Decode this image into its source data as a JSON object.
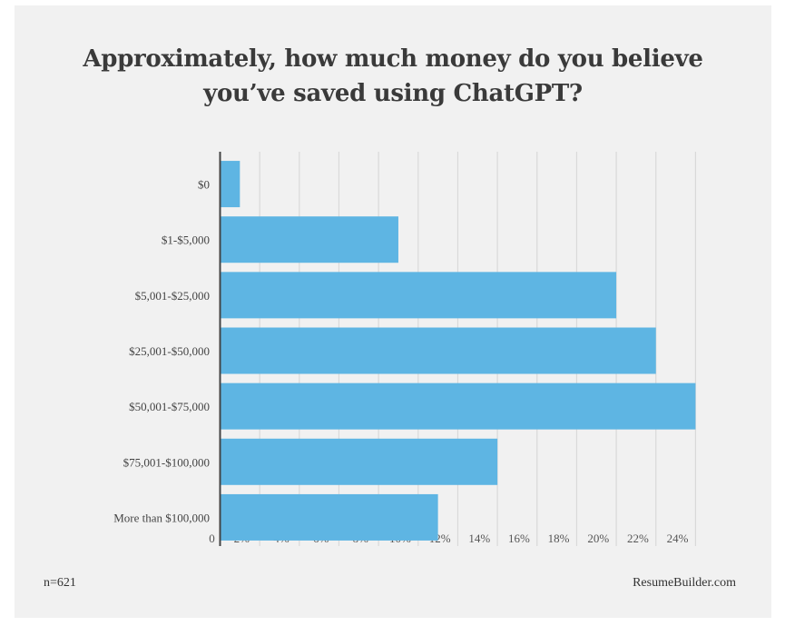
{
  "chart_data": {
    "type": "bar",
    "orientation": "horizontal",
    "title": "Approximately, how much money do you believe you’ve saved using ChatGPT?",
    "title_lines": [
      "Approximately, how much money do you believe",
      "you’ve saved using ChatGPT?"
    ],
    "categories": [
      "$0",
      "$1-$5,000",
      "$5,001-$25,000",
      "$25,001-$50,000",
      "$50,001-$75,000",
      "$75,001-$100,000",
      "More than $100,000"
    ],
    "values": [
      1,
      9,
      20,
      22,
      24,
      14,
      11
    ],
    "unit": "%",
    "xlim": [
      0,
      24
    ],
    "x_ticks": [
      "0",
      "2%",
      "4%",
      "6%",
      "8%",
      "10%",
      "12%",
      "14%",
      "16%",
      "18%",
      "20%",
      "22%",
      "24%"
    ],
    "grid": "vertical",
    "legend": "none",
    "bar_color": "#5eb5e3",
    "background_color": "#f1f1f1"
  },
  "footer": {
    "sample_size": "n=621",
    "source": "ResumeBuilder.com"
  }
}
